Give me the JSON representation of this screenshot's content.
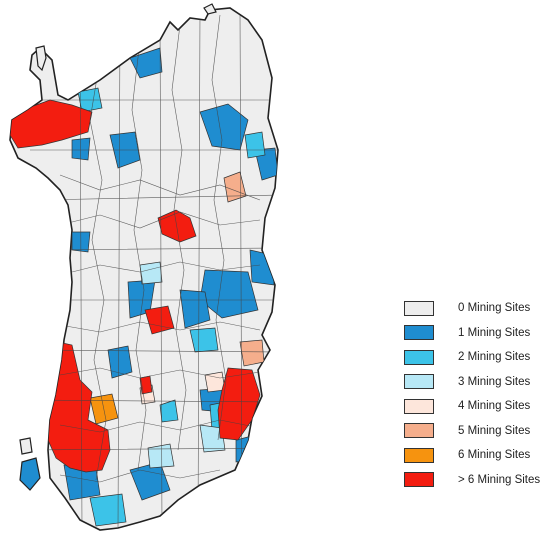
{
  "colors": {
    "0": "#eeeeee",
    "1": "#1f8dd0",
    "2": "#3cc3e8",
    "3": "#b7e8f6",
    "4": "#fde6db",
    "5": "#f5ae8c",
    "6": "#f6930f",
    "7": "#f31d10"
  },
  "legend": {
    "items": [
      {
        "label": "0 Mining Sites",
        "color": "#eeeeee"
      },
      {
        "label": "1 Mining Sites",
        "color": "#1f8dd0"
      },
      {
        "label": "2 Mining Sites",
        "color": "#3cc3e8"
      },
      {
        "label": "3 Mining Sites",
        "color": "#b7e8f6"
      },
      {
        "label": "4 Mining Sites",
        "color": "#fde6db"
      },
      {
        "label": "5 Mining Sites",
        "color": "#f5ae8c"
      },
      {
        "label": "6 Mining Sites",
        "color": "#f6930f"
      },
      {
        "label": "> 6 Mining Sites",
        "color": "#f31d10"
      }
    ]
  }
}
